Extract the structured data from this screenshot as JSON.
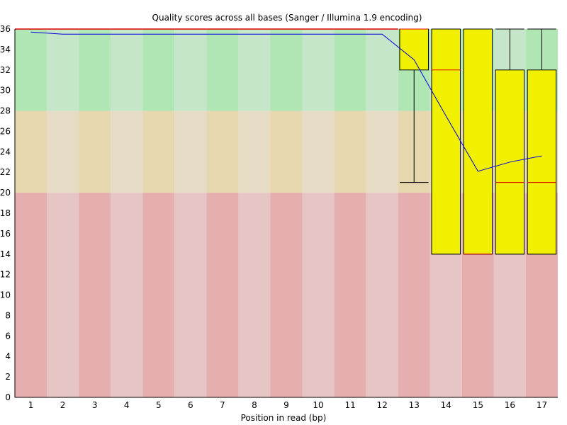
{
  "chart_data": {
    "type": "boxplot",
    "title": "Quality scores across all bases (Sanger / Illumina 1.9 encoding)",
    "xlabel": "Position in read (bp)",
    "ylabel": "",
    "ylim": [
      0,
      36
    ],
    "yticks": [
      0,
      2,
      4,
      6,
      8,
      10,
      12,
      14,
      16,
      18,
      20,
      22,
      24,
      26,
      28,
      30,
      32,
      34,
      36
    ],
    "categories": [
      "1",
      "2",
      "3",
      "4",
      "5",
      "6",
      "7",
      "8",
      "9",
      "10",
      "11",
      "12",
      "13",
      "14",
      "15",
      "16",
      "17"
    ],
    "grid": false,
    "quality_bands": [
      {
        "name": "good",
        "from": 28,
        "to": 36,
        "color_a": "#afe6b4",
        "color_b": "#c5e6c8"
      },
      {
        "name": "reasonable",
        "from": 20,
        "to": 28,
        "color_a": "#e6d7af",
        "color_b": "#e6dcc5"
      },
      {
        "name": "poor",
        "from": 0,
        "to": 20,
        "color_a": "#e6afaf",
        "color_b": "#e6c5c5"
      }
    ],
    "box_color": "#f0f000",
    "median_color": "#e00000",
    "mean_color": "#0000e0",
    "boxes": [
      {
        "q1": 36,
        "median": 36,
        "q3": 36,
        "whisker_low": 36,
        "whisker_high": 36
      },
      {
        "q1": 36,
        "median": 36,
        "q3": 36,
        "whisker_low": 36,
        "whisker_high": 36
      },
      {
        "q1": 36,
        "median": 36,
        "q3": 36,
        "whisker_low": 36,
        "whisker_high": 36
      },
      {
        "q1": 36,
        "median": 36,
        "q3": 36,
        "whisker_low": 36,
        "whisker_high": 36
      },
      {
        "q1": 36,
        "median": 36,
        "q3": 36,
        "whisker_low": 36,
        "whisker_high": 36
      },
      {
        "q1": 36,
        "median": 36,
        "q3": 36,
        "whisker_low": 36,
        "whisker_high": 36
      },
      {
        "q1": 36,
        "median": 36,
        "q3": 36,
        "whisker_low": 36,
        "whisker_high": 36
      },
      {
        "q1": 36,
        "median": 36,
        "q3": 36,
        "whisker_low": 36,
        "whisker_high": 36
      },
      {
        "q1": 36,
        "median": 36,
        "q3": 36,
        "whisker_low": 36,
        "whisker_high": 36
      },
      {
        "q1": 36,
        "median": 36,
        "q3": 36,
        "whisker_low": 36,
        "whisker_high": 36
      },
      {
        "q1": 36,
        "median": 36,
        "q3": 36,
        "whisker_low": 36,
        "whisker_high": 36
      },
      {
        "q1": 36,
        "median": 36,
        "q3": 36,
        "whisker_low": 36,
        "whisker_high": 36
      },
      {
        "q1": 32,
        "median": 36,
        "q3": 36,
        "whisker_low": 21,
        "whisker_high": 36
      },
      {
        "q1": 14,
        "median": 32,
        "q3": 36,
        "whisker_low": 14,
        "whisker_high": 36
      },
      {
        "q1": 14,
        "median": 14,
        "q3": 36,
        "whisker_low": 14,
        "whisker_high": 36
      },
      {
        "q1": 14,
        "median": 21,
        "q3": 32,
        "whisker_low": 14,
        "whisker_high": 36
      },
      {
        "q1": 14,
        "median": 21,
        "q3": 32,
        "whisker_low": 14,
        "whisker_high": 36
      }
    ],
    "mean": [
      35.7,
      35.5,
      35.5,
      35.5,
      35.5,
      35.5,
      35.5,
      35.5,
      35.5,
      35.5,
      35.5,
      35.5,
      33.0,
      27.5,
      22.1,
      23.0,
      23.6
    ]
  }
}
